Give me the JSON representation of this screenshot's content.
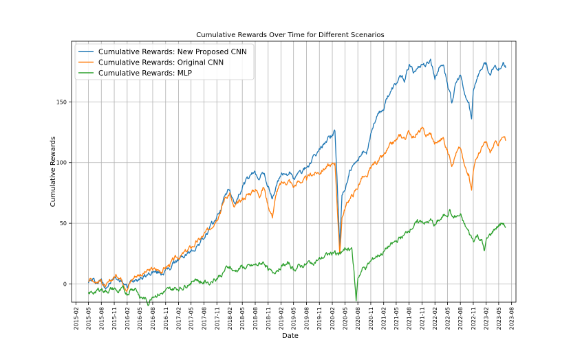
{
  "chart_data": {
    "type": "line",
    "title": "Cumulative Rewards Over Time for Different Scenarios",
    "xlabel": "Date",
    "ylabel": "Cumulative Rewards",
    "ylim": [
      -15,
      200
    ],
    "yticks": [
      0,
      50,
      100,
      150
    ],
    "xlim": [
      "2015-01-01",
      "2023-09-01"
    ],
    "xticks": [
      "2015-02",
      "2015-05",
      "2015-08",
      "2015-11",
      "2016-02",
      "2016-05",
      "2016-08",
      "2016-11",
      "2017-02",
      "2017-05",
      "2017-08",
      "2017-11",
      "2018-02",
      "2018-05",
      "2018-08",
      "2018-11",
      "2019-02",
      "2019-05",
      "2019-08",
      "2019-11",
      "2020-02",
      "2020-05",
      "2020-08",
      "2020-11",
      "2021-02",
      "2021-05",
      "2021-08",
      "2021-11",
      "2022-02",
      "2022-05",
      "2022-08",
      "2022-11",
      "2023-02",
      "2023-05",
      "2023-08"
    ],
    "grid": true,
    "legend_position": "top-left",
    "series": [
      {
        "name": "Cumulative Rewards: New Proposed CNN",
        "color": "#1f77b4",
        "points": [
          [
            "2015-05-01",
            2
          ],
          [
            "2015-06-01",
            3
          ],
          [
            "2015-07-01",
            1
          ],
          [
            "2015-08-01",
            3
          ],
          [
            "2015-09-01",
            -2
          ],
          [
            "2015-10-01",
            0
          ],
          [
            "2015-11-01",
            5
          ],
          [
            "2015-12-01",
            4
          ],
          [
            "2016-01-01",
            2
          ],
          [
            "2016-02-01",
            -3
          ],
          [
            "2016-03-01",
            2
          ],
          [
            "2016-04-01",
            5
          ],
          [
            "2016-06-01",
            6
          ],
          [
            "2016-08-01",
            10
          ],
          [
            "2016-10-01",
            9
          ],
          [
            "2016-12-01",
            13
          ],
          [
            "2017-01-01",
            18
          ],
          [
            "2017-03-01",
            22
          ],
          [
            "2017-05-01",
            27
          ],
          [
            "2017-06-01",
            30
          ],
          [
            "2017-08-01",
            38
          ],
          [
            "2017-09-01",
            43
          ],
          [
            "2017-11-01",
            55
          ],
          [
            "2017-12-01",
            62
          ],
          [
            "2018-01-01",
            75
          ],
          [
            "2018-02-01",
            78
          ],
          [
            "2018-03-01",
            66
          ],
          [
            "2018-04-01",
            70
          ],
          [
            "2018-05-01",
            80
          ],
          [
            "2018-06-01",
            85
          ],
          [
            "2018-08-01",
            92
          ],
          [
            "2018-09-01",
            88
          ],
          [
            "2018-10-01",
            92
          ],
          [
            "2018-11-01",
            80
          ],
          [
            "2018-12-01",
            70
          ],
          [
            "2019-01-01",
            82
          ],
          [
            "2019-02-01",
            90
          ],
          [
            "2019-04-01",
            92
          ],
          [
            "2019-05-01",
            86
          ],
          [
            "2019-06-01",
            90
          ],
          [
            "2019-08-01",
            96
          ],
          [
            "2019-09-01",
            100
          ],
          [
            "2019-11-01",
            110
          ],
          [
            "2019-12-01",
            115
          ],
          [
            "2020-01-01",
            120
          ],
          [
            "2020-02-01",
            123
          ],
          [
            "2020-02-20",
            126
          ],
          [
            "2020-03-01",
            100
          ],
          [
            "2020-03-15",
            60
          ],
          [
            "2020-03-25",
            30
          ],
          [
            "2020-04-10",
            72
          ],
          [
            "2020-05-01",
            78
          ],
          [
            "2020-06-01",
            92
          ],
          [
            "2020-07-01",
            96
          ],
          [
            "2020-08-01",
            100
          ],
          [
            "2020-09-01",
            110
          ],
          [
            "2020-10-01",
            108
          ],
          [
            "2020-11-01",
            125
          ],
          [
            "2020-12-01",
            135
          ],
          [
            "2021-01-01",
            140
          ],
          [
            "2021-02-01",
            145
          ],
          [
            "2021-03-01",
            155
          ],
          [
            "2021-04-01",
            160
          ],
          [
            "2021-05-01",
            165
          ],
          [
            "2021-06-01",
            170
          ],
          [
            "2021-07-01",
            168
          ],
          [
            "2021-08-01",
            180
          ],
          [
            "2021-09-01",
            175
          ],
          [
            "2021-10-01",
            178
          ],
          [
            "2021-11-01",
            182
          ],
          [
            "2021-12-01",
            180
          ],
          [
            "2022-01-01",
            185
          ],
          [
            "2022-02-01",
            170
          ],
          [
            "2022-03-01",
            178
          ],
          [
            "2022-04-01",
            182
          ],
          [
            "2022-05-01",
            165
          ],
          [
            "2022-06-01",
            150
          ],
          [
            "2022-07-01",
            165
          ],
          [
            "2022-08-01",
            172
          ],
          [
            "2022-09-01",
            155
          ],
          [
            "2022-10-01",
            148
          ],
          [
            "2022-10-20",
            135
          ],
          [
            "2022-11-01",
            160
          ],
          [
            "2022-12-01",
            172
          ],
          [
            "2023-01-01",
            178
          ],
          [
            "2023-02-01",
            182
          ],
          [
            "2023-03-01",
            170
          ],
          [
            "2023-04-01",
            180
          ],
          [
            "2023-05-01",
            178
          ],
          [
            "2023-06-01",
            182
          ],
          [
            "2023-06-20",
            178
          ]
        ]
      },
      {
        "name": "Cumulative Rewards: Original CNN",
        "color": "#ff7f0e",
        "points": [
          [
            "2015-05-01",
            3
          ],
          [
            "2015-06-01",
            4
          ],
          [
            "2015-07-01",
            2
          ],
          [
            "2015-08-01",
            3
          ],
          [
            "2015-09-01",
            -3
          ],
          [
            "2015-10-01",
            1
          ],
          [
            "2015-11-01",
            6
          ],
          [
            "2015-12-01",
            7
          ],
          [
            "2016-01-01",
            3
          ],
          [
            "2016-02-01",
            -4
          ],
          [
            "2016-03-01",
            3
          ],
          [
            "2016-04-01",
            7
          ],
          [
            "2016-06-01",
            9
          ],
          [
            "2016-08-01",
            12
          ],
          [
            "2016-10-01",
            11
          ],
          [
            "2016-12-01",
            16
          ],
          [
            "2017-01-01",
            20
          ],
          [
            "2017-03-01",
            24
          ],
          [
            "2017-05-01",
            30
          ],
          [
            "2017-06-01",
            33
          ],
          [
            "2017-08-01",
            40
          ],
          [
            "2017-09-01",
            44
          ],
          [
            "2017-11-01",
            55
          ],
          [
            "2017-12-01",
            62
          ],
          [
            "2018-01-01",
            72
          ],
          [
            "2018-02-01",
            75
          ],
          [
            "2018-03-01",
            62
          ],
          [
            "2018-04-01",
            66
          ],
          [
            "2018-05-01",
            70
          ],
          [
            "2018-06-01",
            73
          ],
          [
            "2018-08-01",
            78
          ],
          [
            "2018-09-01",
            74
          ],
          [
            "2018-10-01",
            80
          ],
          [
            "2018-11-01",
            65
          ],
          [
            "2018-12-01",
            56
          ],
          [
            "2019-01-01",
            76
          ],
          [
            "2019-02-01",
            82
          ],
          [
            "2019-04-01",
            85
          ],
          [
            "2019-05-01",
            80
          ],
          [
            "2019-06-01",
            84
          ],
          [
            "2019-08-01",
            86
          ],
          [
            "2019-09-01",
            90
          ],
          [
            "2019-11-01",
            92
          ],
          [
            "2019-12-01",
            95
          ],
          [
            "2020-01-01",
            97
          ],
          [
            "2020-02-01",
            98
          ],
          [
            "2020-02-20",
            100
          ],
          [
            "2020-03-01",
            80
          ],
          [
            "2020-03-15",
            45
          ],
          [
            "2020-03-25",
            24
          ],
          [
            "2020-04-10",
            55
          ],
          [
            "2020-05-01",
            62
          ],
          [
            "2020-06-01",
            70
          ],
          [
            "2020-07-01",
            74
          ],
          [
            "2020-08-01",
            80
          ],
          [
            "2020-09-01",
            88
          ],
          [
            "2020-10-01",
            86
          ],
          [
            "2020-11-01",
            95
          ],
          [
            "2020-12-01",
            100
          ],
          [
            "2021-01-01",
            102
          ],
          [
            "2021-02-01",
            105
          ],
          [
            "2021-03-01",
            110
          ],
          [
            "2021-04-01",
            115
          ],
          [
            "2021-05-01",
            118
          ],
          [
            "2021-06-01",
            122
          ],
          [
            "2021-07-01",
            120
          ],
          [
            "2021-08-01",
            125
          ],
          [
            "2021-09-01",
            122
          ],
          [
            "2021-10-01",
            124
          ],
          [
            "2021-11-01",
            127
          ],
          [
            "2021-12-01",
            122
          ],
          [
            "2022-01-01",
            124
          ],
          [
            "2022-02-01",
            115
          ],
          [
            "2022-03-01",
            118
          ],
          [
            "2022-04-01",
            120
          ],
          [
            "2022-05-01",
            110
          ],
          [
            "2022-06-01",
            100
          ],
          [
            "2022-07-01",
            108
          ],
          [
            "2022-08-01",
            112
          ],
          [
            "2022-09-01",
            96
          ],
          [
            "2022-10-01",
            92
          ],
          [
            "2022-10-20",
            78
          ],
          [
            "2022-11-01",
            95
          ],
          [
            "2022-12-01",
            105
          ],
          [
            "2023-01-01",
            112
          ],
          [
            "2023-02-01",
            116
          ],
          [
            "2023-03-01",
            108
          ],
          [
            "2023-04-01",
            115
          ],
          [
            "2023-05-01",
            116
          ],
          [
            "2023-06-01",
            120
          ],
          [
            "2023-06-20",
            118
          ]
        ]
      },
      {
        "name": "Cumulative Rewards: MLP",
        "color": "#2ca02c",
        "points": [
          [
            "2015-05-01",
            -8
          ],
          [
            "2015-06-01",
            -7
          ],
          [
            "2015-07-01",
            -5
          ],
          [
            "2015-08-01",
            -4
          ],
          [
            "2015-09-01",
            -6
          ],
          [
            "2015-10-01",
            -5
          ],
          [
            "2015-11-01",
            -4
          ],
          [
            "2015-12-01",
            -7
          ],
          [
            "2016-01-01",
            -5
          ],
          [
            "2016-02-01",
            -8
          ],
          [
            "2016-03-01",
            -4
          ],
          [
            "2016-04-01",
            -3
          ],
          [
            "2016-05-01",
            -10
          ],
          [
            "2016-06-01",
            -12
          ],
          [
            "2016-07-01",
            -16
          ],
          [
            "2016-08-01",
            -9
          ],
          [
            "2016-10-01",
            -8
          ],
          [
            "2016-12-01",
            -5
          ],
          [
            "2017-01-01",
            -4
          ],
          [
            "2017-03-01",
            -3
          ],
          [
            "2017-05-01",
            2
          ],
          [
            "2017-06-01",
            5
          ],
          [
            "2017-07-01",
            2
          ],
          [
            "2017-08-01",
            1
          ],
          [
            "2017-09-01",
            2
          ],
          [
            "2017-11-01",
            5
          ],
          [
            "2017-12-01",
            8
          ],
          [
            "2018-01-01",
            12
          ],
          [
            "2018-02-01",
            15
          ],
          [
            "2018-03-01",
            10
          ],
          [
            "2018-04-01",
            12
          ],
          [
            "2018-05-01",
            14
          ],
          [
            "2018-06-01",
            13
          ],
          [
            "2018-08-01",
            15
          ],
          [
            "2018-09-01",
            16
          ],
          [
            "2018-10-01",
            18
          ],
          [
            "2018-11-01",
            13
          ],
          [
            "2018-12-01",
            8
          ],
          [
            "2019-01-01",
            12
          ],
          [
            "2019-02-01",
            15
          ],
          [
            "2019-04-01",
            16
          ],
          [
            "2019-05-01",
            12
          ],
          [
            "2019-06-01",
            14
          ],
          [
            "2019-08-01",
            16
          ],
          [
            "2019-09-01",
            18
          ],
          [
            "2019-11-01",
            20
          ],
          [
            "2019-12-01",
            22
          ],
          [
            "2020-01-01",
            24
          ],
          [
            "2020-02-01",
            25
          ],
          [
            "2020-02-20",
            28
          ],
          [
            "2020-03-01",
            25
          ],
          [
            "2020-03-15",
            24
          ],
          [
            "2020-04-01",
            26
          ],
          [
            "2020-05-01",
            28
          ],
          [
            "2020-06-01",
            29
          ],
          [
            "2020-06-20",
            30
          ],
          [
            "2020-07-01",
            15
          ],
          [
            "2020-07-20",
            -14
          ],
          [
            "2020-08-01",
            5
          ],
          [
            "2020-09-01",
            12
          ],
          [
            "2020-10-01",
            14
          ],
          [
            "2020-11-01",
            18
          ],
          [
            "2020-12-01",
            22
          ],
          [
            "2021-01-01",
            24
          ],
          [
            "2021-02-01",
            26
          ],
          [
            "2021-03-01",
            30
          ],
          [
            "2021-04-01",
            32
          ],
          [
            "2021-05-01",
            35
          ],
          [
            "2021-06-01",
            38
          ],
          [
            "2021-07-01",
            40
          ],
          [
            "2021-08-01",
            45
          ],
          [
            "2021-09-01",
            48
          ],
          [
            "2021-10-01",
            50
          ],
          [
            "2021-11-01",
            52
          ],
          [
            "2021-12-01",
            50
          ],
          [
            "2022-01-01",
            52
          ],
          [
            "2022-02-01",
            48
          ],
          [
            "2022-03-01",
            52
          ],
          [
            "2022-04-01",
            55
          ],
          [
            "2022-05-01",
            58
          ],
          [
            "2022-05-20",
            62
          ],
          [
            "2022-06-01",
            55
          ],
          [
            "2022-07-01",
            55
          ],
          [
            "2022-08-01",
            56
          ],
          [
            "2022-09-01",
            48
          ],
          [
            "2022-10-01",
            42
          ],
          [
            "2022-10-20",
            38
          ],
          [
            "2022-11-01",
            36
          ],
          [
            "2022-12-01",
            40
          ],
          [
            "2023-01-01",
            35
          ],
          [
            "2023-01-20",
            27
          ],
          [
            "2023-02-01",
            35
          ],
          [
            "2023-03-01",
            40
          ],
          [
            "2023-04-01",
            45
          ],
          [
            "2023-05-01",
            48
          ],
          [
            "2023-06-01",
            50
          ],
          [
            "2023-06-20",
            47
          ]
        ]
      }
    ]
  }
}
